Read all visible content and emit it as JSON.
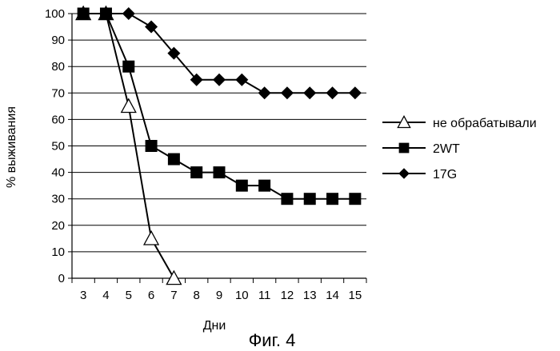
{
  "chart_data": {
    "type": "line",
    "x": [
      3,
      4,
      5,
      6,
      7,
      8,
      9,
      10,
      11,
      12,
      13,
      14,
      15
    ],
    "series": [
      {
        "name": "не обрабатывали",
        "marker": "triangle-open",
        "points": [
          [
            3,
            100
          ],
          [
            4,
            100
          ],
          [
            5,
            65
          ],
          [
            6,
            15
          ],
          [
            7,
            0
          ]
        ]
      },
      {
        "name": "2WT",
        "marker": "square",
        "points": [
          [
            3,
            100
          ],
          [
            4,
            100
          ],
          [
            5,
            80
          ],
          [
            6,
            50
          ],
          [
            7,
            45
          ],
          [
            8,
            40
          ],
          [
            9,
            40
          ],
          [
            10,
            35
          ],
          [
            11,
            35
          ],
          [
            12,
            30
          ],
          [
            13,
            30
          ],
          [
            14,
            30
          ],
          [
            15,
            30
          ]
        ]
      },
      {
        "name": "17G",
        "marker": "diamond",
        "points": [
          [
            3,
            100
          ],
          [
            4,
            100
          ],
          [
            5,
            100
          ],
          [
            6,
            95
          ],
          [
            7,
            85
          ],
          [
            8,
            75
          ],
          [
            9,
            75
          ],
          [
            10,
            75
          ],
          [
            11,
            70
          ],
          [
            12,
            70
          ],
          [
            13,
            70
          ],
          [
            14,
            70
          ],
          [
            15,
            70
          ]
        ]
      }
    ],
    "xlabel": "Дни",
    "ylabel": "% выживания",
    "xlim": [
      3,
      15
    ],
    "ylim": [
      0,
      100
    ],
    "yticks": [
      0,
      10,
      20,
      30,
      40,
      50,
      60,
      70,
      80,
      90,
      100
    ],
    "xticks": [
      3,
      4,
      5,
      6,
      7,
      8,
      9,
      10,
      11,
      12,
      13,
      14,
      15
    ],
    "grid": "horizontal",
    "legend_position": "right"
  },
  "caption": "Фиг. 4",
  "colors": {
    "ink": "#000000",
    "background": "#ffffff"
  }
}
